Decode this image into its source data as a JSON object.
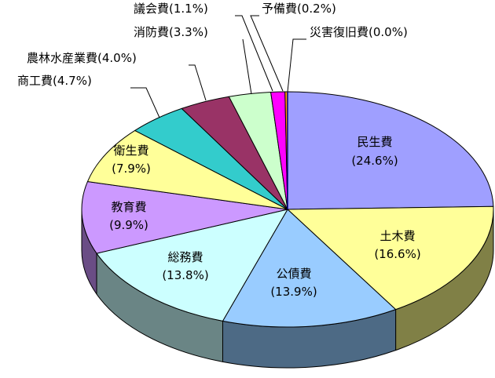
{
  "chart_data": {
    "type": "pie",
    "title": "",
    "slices": [
      {
        "name": "民生費",
        "value": 24.6,
        "label_value": "(24.6%)",
        "color": "#9f9fff",
        "side_color": "#53538a",
        "label_inside": true
      },
      {
        "name": "土木費",
        "value": 16.6,
        "label_value": "(16.6%)",
        "color": "#ffff99",
        "side_color": "#808046",
        "label_inside": true
      },
      {
        "name": "公債費",
        "value": 13.9,
        "label_value": "(13.9%)",
        "color": "#99ccff",
        "side_color": "#4d6a85",
        "label_inside": true
      },
      {
        "name": "総務費",
        "value": 13.8,
        "label_value": "(13.8%)",
        "color": "#ccffff",
        "side_color": "#6a8585",
        "label_inside": true
      },
      {
        "name": "教育費",
        "value": 9.9,
        "label_value": "(9.9%)",
        "color": "#cc99ff",
        "side_color": "#6a4d85",
        "label_inside": true
      },
      {
        "name": "衛生費",
        "value": 7.9,
        "label_value": "(7.9%)",
        "color": "#ffff99",
        "side_color": "#808046",
        "label_inside": true
      },
      {
        "name": "商工費",
        "value": 4.7,
        "label_value": "(4.7%)",
        "color": "#33cccc",
        "side_color": "#1f7a7a",
        "label_inside": false
      },
      {
        "name": "農林水産業費",
        "value": 4.0,
        "label_value": "(4.0%)",
        "color": "#993366",
        "side_color": "#5c1f3d",
        "label_inside": false
      },
      {
        "name": "消防費",
        "value": 3.3,
        "label_value": "(3.3%)",
        "color": "#ccffcc",
        "side_color": "#6a856a",
        "label_inside": false
      },
      {
        "name": "議会費",
        "value": 1.1,
        "label_value": "(1.1%)",
        "color": "#ff00ff",
        "side_color": "#800080",
        "label_inside": false
      },
      {
        "name": "予備費",
        "value": 0.2,
        "label_value": "(0.2%)",
        "color": "#ff9900",
        "side_color": "#804c00",
        "label_inside": false
      },
      {
        "name": "災害復旧費",
        "value": 0.0,
        "label_value": "(0.0%)",
        "color": "#000080",
        "side_color": "#000040",
        "label_inside": false
      }
    ]
  }
}
